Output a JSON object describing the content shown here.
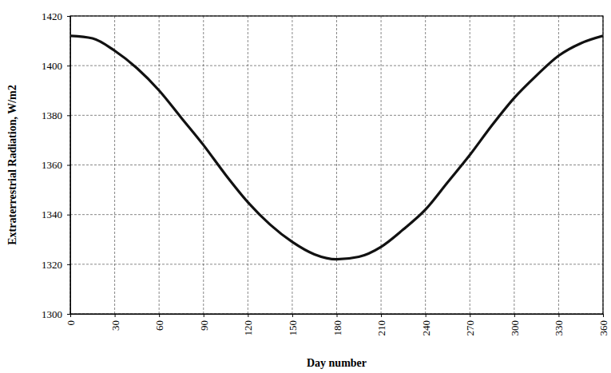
{
  "chart_data": {
    "type": "line",
    "x_label": "Day number",
    "y_label": "Extraterrestrial Radiation, W/m2",
    "x": [
      0,
      15,
      30,
      45,
      60,
      75,
      90,
      105,
      120,
      135,
      150,
      165,
      180,
      195,
      210,
      225,
      240,
      255,
      270,
      285,
      300,
      315,
      330,
      345,
      360
    ],
    "values": [
      1412,
      1411,
      1406,
      1399,
      1390,
      1379,
      1368,
      1356,
      1345,
      1336,
      1329,
      1324,
      1322,
      1323,
      1327,
      1334,
      1342,
      1353,
      1364,
      1376,
      1387,
      1396,
      1404,
      1409,
      1412
    ],
    "color": "#111111",
    "xlim": [
      0,
      360
    ],
    "xticks": [
      0,
      30,
      60,
      90,
      120,
      150,
      180,
      210,
      240,
      270,
      300,
      330,
      360
    ],
    "ylim": [
      1300,
      1420
    ],
    "yticks": [
      1300,
      1320,
      1340,
      1360,
      1380,
      1400,
      1420
    ],
    "grid": true
  }
}
